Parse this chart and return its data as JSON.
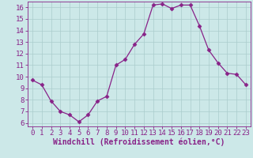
{
  "x": [
    0,
    1,
    2,
    3,
    4,
    5,
    6,
    7,
    8,
    9,
    10,
    11,
    12,
    13,
    14,
    15,
    16,
    17,
    18,
    19,
    20,
    21,
    22,
    23
  ],
  "y": [
    9.7,
    9.3,
    7.9,
    7.0,
    6.7,
    6.1,
    6.7,
    7.9,
    8.3,
    11.0,
    11.5,
    12.8,
    13.7,
    16.2,
    16.3,
    15.9,
    16.2,
    16.2,
    14.4,
    12.3,
    11.2,
    10.3,
    10.2,
    9.3
  ],
  "line_color": "#882288",
  "marker": "D",
  "marker_size": 2.5,
  "bg_color": "#cce8e8",
  "grid_color": "#aacccc",
  "xlabel": "Windchill (Refroidissement éolien,°C)",
  "yticks": [
    6,
    7,
    8,
    9,
    10,
    11,
    12,
    13,
    14,
    15,
    16
  ],
  "xticks": [
    0,
    1,
    2,
    3,
    4,
    5,
    6,
    7,
    8,
    9,
    10,
    11,
    12,
    13,
    14,
    15,
    16,
    17,
    18,
    19,
    20,
    21,
    22,
    23
  ],
  "tick_fontsize": 6.5,
  "xlabel_fontsize": 7.0
}
